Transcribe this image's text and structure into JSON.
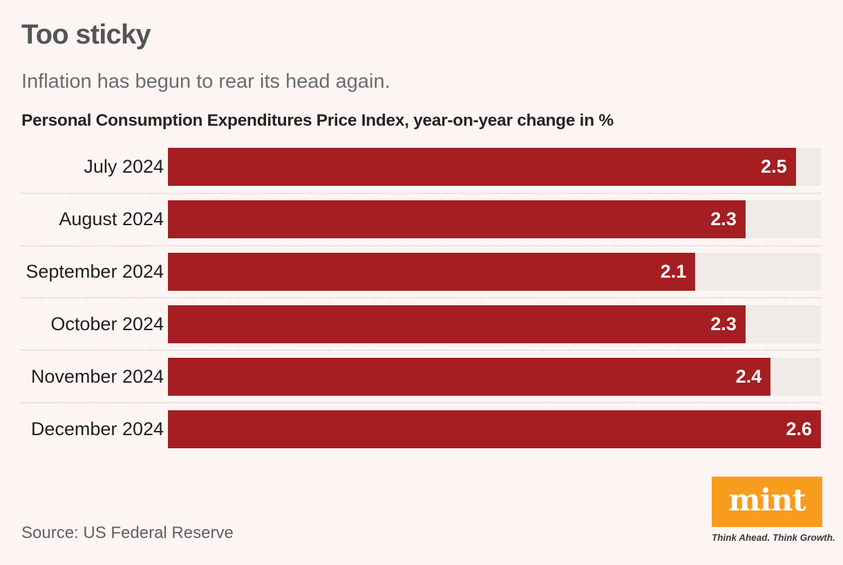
{
  "page": {
    "title": "Too sticky",
    "subtitle": "Inflation has begun to rear its head again.",
    "chart_heading": "Personal Consumption Expenditures Price Index, year-on-year change in %",
    "source": "Source: US Federal Reserve"
  },
  "branding": {
    "logo_text": "mint",
    "tagline": "Think Ahead. Think Growth."
  },
  "colors": {
    "background": "#fdf5f3",
    "bar": "#a41e22",
    "bar_track": "#f0ebe8",
    "separator": "#d8d3d1",
    "logo_background": "#f89c1d",
    "value_text": "#ffffff"
  },
  "chart_data": {
    "type": "bar",
    "orientation": "horizontal",
    "title": "Too sticky",
    "subtitle": "Inflation has begun to rear its head again.",
    "axis_label": "Personal Consumption Expenditures Price Index, year-on-year change in %",
    "categories": [
      "July 2024",
      "August 2024",
      "September 2024",
      "October 2024",
      "November 2024",
      "December 2024"
    ],
    "values": [
      2.5,
      2.3,
      2.1,
      2.3,
      2.4,
      2.6
    ],
    "value_labels": [
      "2.5",
      "2.3",
      "2.1",
      "2.3",
      "2.4",
      "2.6"
    ],
    "xlim": [
      0,
      2.6
    ],
    "grid": false,
    "legend": "none",
    "bar_label_position": "inside-end",
    "source": "US Federal Reserve"
  }
}
